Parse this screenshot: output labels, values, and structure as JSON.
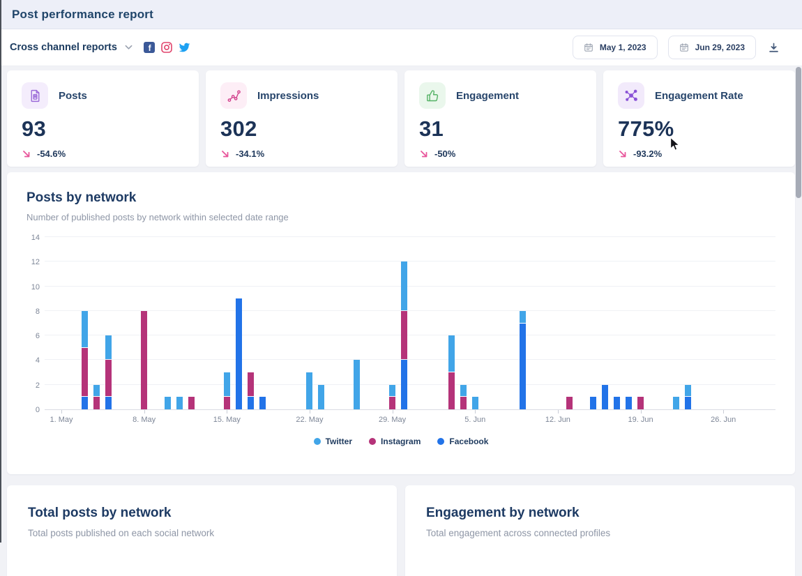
{
  "window": {
    "title": "Post performance report"
  },
  "toolbar": {
    "report_selector_label": "Cross channel reports",
    "networks": [
      {
        "name": "facebook",
        "color": "#3b5998"
      },
      {
        "name": "instagram",
        "color": "#e0446c"
      },
      {
        "name": "twitter",
        "color": "#1da1f2"
      }
    ],
    "date_from": "May 1, 2023",
    "date_to": "Jun 29, 2023"
  },
  "theme": {
    "trend_down_color": "#e8559b",
    "heading_color": "#1d3a63",
    "page_background": "#f1f2f6"
  },
  "stats": [
    {
      "label": "Posts",
      "value": "93",
      "change": "-54.6%",
      "trend": "down",
      "icon": "document-icon",
      "icon_color": "#9b6ad8",
      "icon_bg": "#f4edfc"
    },
    {
      "label": "Impressions",
      "value": "302",
      "change": "-34.1%",
      "trend": "down",
      "icon": "scatter-chart-icon",
      "icon_color": "#d23f8c",
      "icon_bg": "#fdeef6"
    },
    {
      "label": "Engagement",
      "value": "31",
      "change": "-50%",
      "trend": "down",
      "icon": "thumbs-up-icon",
      "icon_color": "#55b266",
      "icon_bg": "#eaf7ec"
    },
    {
      "label": "Engagement Rate",
      "value": "775%",
      "change": "-93.2%",
      "trend": "down",
      "icon": "network-icon",
      "icon_color": "#8a52d6",
      "icon_bg": "#f2eafb"
    }
  ],
  "chart_card": {
    "title": "Posts by network",
    "subtitle": "Number of published posts by network within selected date range"
  },
  "chart_data": {
    "type": "bar",
    "stacked": true,
    "title": "Posts by network",
    "ylim": [
      0,
      14
    ],
    "y_ticks": [
      0,
      2,
      4,
      6,
      8,
      10,
      12,
      14
    ],
    "grid": true,
    "legend_position": "bottom",
    "series_stack_order": [
      "Facebook",
      "Instagram",
      "Twitter"
    ],
    "legend": [
      {
        "name": "Twitter",
        "color": "#41a5e8"
      },
      {
        "name": "Instagram",
        "color": "#b53379"
      },
      {
        "name": "Facebook",
        "color": "#2273e8"
      }
    ],
    "x_axis": {
      "range": [
        "May 1, 2023",
        "Jun 29, 2023"
      ],
      "ticks": [
        {
          "label": "1. May",
          "day": 0
        },
        {
          "label": "8. May",
          "day": 7
        },
        {
          "label": "15. May",
          "day": 14
        },
        {
          "label": "22. May",
          "day": 21
        },
        {
          "label": "29. May",
          "day": 28
        },
        {
          "label": "5. Jun",
          "day": 35
        },
        {
          "label": "12. Jun",
          "day": 42
        },
        {
          "label": "19. Jun",
          "day": 49
        },
        {
          "label": "26. Jun",
          "day": 56
        }
      ]
    },
    "bars": [
      {
        "date": "3. May",
        "day": 2,
        "Facebook": 1,
        "Instagram": 4,
        "Twitter": 3
      },
      {
        "date": "4. May",
        "day": 3,
        "Instagram": 1,
        "Twitter": 1
      },
      {
        "date": "5. May",
        "day": 4,
        "Facebook": 1,
        "Instagram": 3,
        "Twitter": 2
      },
      {
        "date": "8. May",
        "day": 7,
        "Instagram": 8
      },
      {
        "date": "10. May",
        "day": 9,
        "Twitter": 1
      },
      {
        "date": "11. May",
        "day": 10,
        "Twitter": 1
      },
      {
        "date": "12. May",
        "day": 11,
        "Instagram": 1
      },
      {
        "date": "15. May",
        "day": 14,
        "Instagram": 1,
        "Twitter": 2
      },
      {
        "date": "16. May",
        "day": 15,
        "Facebook": 9
      },
      {
        "date": "17. May",
        "day": 16,
        "Facebook": 1,
        "Instagram": 2
      },
      {
        "date": "18. May",
        "day": 17,
        "Facebook": 1
      },
      {
        "date": "22. May",
        "day": 21,
        "Twitter": 3
      },
      {
        "date": "23. May",
        "day": 22,
        "Twitter": 2
      },
      {
        "date": "26. May",
        "day": 25,
        "Twitter": 4
      },
      {
        "date": "29. May",
        "day": 28,
        "Instagram": 1,
        "Twitter": 1
      },
      {
        "date": "30. May",
        "day": 29,
        "Facebook": 4,
        "Instagram": 4,
        "Twitter": 4
      },
      {
        "date": "3. Jun",
        "day": 33,
        "Instagram": 3,
        "Twitter": 3
      },
      {
        "date": "4. Jun",
        "day": 34,
        "Instagram": 1,
        "Twitter": 1
      },
      {
        "date": "5. Jun",
        "day": 35,
        "Twitter": 1
      },
      {
        "date": "9. Jun",
        "day": 39,
        "Facebook": 7,
        "Twitter": 1
      },
      {
        "date": "13. Jun",
        "day": 43,
        "Instagram": 1
      },
      {
        "date": "15. Jun",
        "day": 45,
        "Facebook": 1
      },
      {
        "date": "16. Jun",
        "day": 46,
        "Facebook": 2
      },
      {
        "date": "17. Jun",
        "day": 47,
        "Facebook": 1
      },
      {
        "date": "18. Jun",
        "day": 48,
        "Facebook": 1
      },
      {
        "date": "19. Jun",
        "day": 49,
        "Instagram": 1
      },
      {
        "date": "22. Jun",
        "day": 52,
        "Twitter": 1
      },
      {
        "date": "23. Jun",
        "day": 53,
        "Facebook": 1,
        "Twitter": 1
      }
    ]
  },
  "sections": [
    {
      "title": "Total posts by network",
      "subtitle": "Total posts published on each social network"
    },
    {
      "title": "Engagement by network",
      "subtitle": "Total engagement across connected profiles"
    }
  ]
}
